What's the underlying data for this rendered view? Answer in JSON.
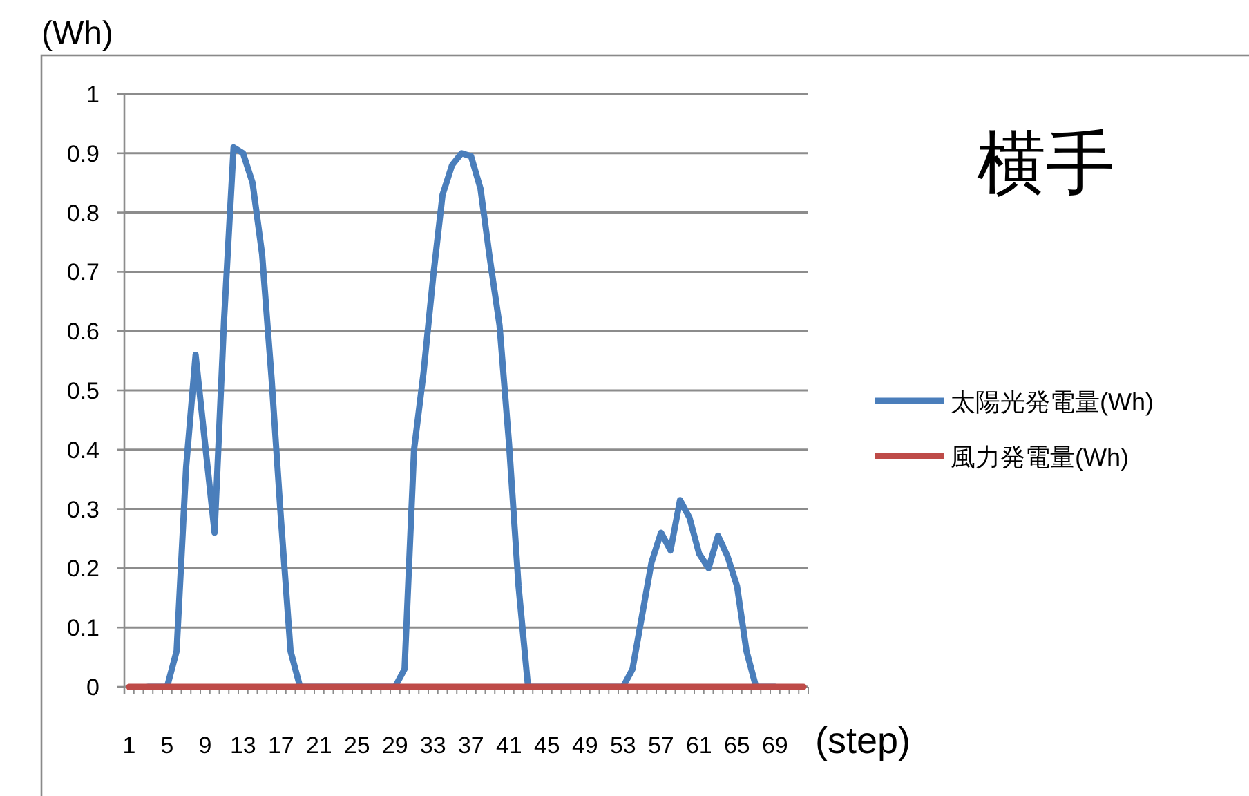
{
  "chart_data": {
    "type": "line",
    "title": "横手",
    "xlabel": "(step)",
    "ylabel": "(Wh)",
    "categories": [
      "1",
      null,
      null,
      null,
      "5",
      null,
      null,
      null,
      "9",
      null,
      null,
      null,
      "13",
      null,
      null,
      null,
      "17",
      null,
      null,
      null,
      "21",
      null,
      null,
      null,
      "25",
      null,
      null,
      null,
      "29",
      null,
      null,
      null,
      "33",
      null,
      null,
      null,
      "37",
      null,
      null,
      null,
      "41",
      null,
      null,
      null,
      "45",
      null,
      null,
      null,
      "49",
      null,
      null,
      null,
      "53",
      null,
      null,
      null,
      "57",
      null,
      null,
      null,
      "61",
      null,
      null,
      null,
      "65",
      null,
      null,
      null,
      "69",
      null,
      null,
      null
    ],
    "series": [
      {
        "name": "太陽光発電量(Wh)",
        "color": "#4a7ebb",
        "values": [
          null,
          null,
          0,
          0,
          0,
          0.06,
          0.37,
          0.56,
          0.41,
          0.26,
          0.62,
          0.91,
          0.9,
          0.85,
          0.73,
          0.52,
          0.28,
          0.06,
          0,
          0,
          0,
          0,
          0,
          0,
          0,
          0,
          0,
          0,
          0,
          0.03,
          0.4,
          0.53,
          0.69,
          0.83,
          0.88,
          0.9,
          0.895,
          0.84,
          0.72,
          0.61,
          0.41,
          0.17,
          0,
          0,
          0,
          0,
          0,
          0,
          0,
          0,
          0,
          0,
          0,
          0.03,
          0.12,
          0.21,
          0.26,
          0.23,
          0.315,
          0.285,
          0.225,
          0.2,
          0.255,
          0.22,
          0.17,
          0.06,
          0,
          0,
          0,
          null,
          null,
          null
        ]
      },
      {
        "name": "風力発電量(Wh)",
        "color": "#be4b48",
        "values": [
          0,
          0,
          0,
          0,
          0,
          0,
          0,
          0,
          0,
          0,
          0,
          0,
          0,
          0,
          0,
          0,
          0,
          0,
          0,
          0,
          0,
          0,
          0,
          0,
          0,
          0,
          0,
          0,
          0,
          0,
          0,
          0,
          0,
          0,
          0,
          0,
          0,
          0,
          0,
          0,
          0,
          0,
          0,
          0,
          0,
          0,
          0,
          0,
          0,
          0,
          0,
          0,
          0,
          0,
          0,
          0,
          0,
          0,
          0,
          0,
          0,
          0,
          0,
          0,
          0,
          0,
          0,
          0,
          0,
          0,
          0,
          0
        ]
      }
    ],
    "ylim": [
      0,
      1
    ],
    "yticks": [
      0,
      0.1,
      0.2,
      0.3,
      0.4,
      0.5,
      0.6,
      0.7,
      0.8,
      0.9,
      1
    ],
    "grid": "y",
    "legend": "right",
    "marker": "none",
    "line_style": "solid"
  }
}
